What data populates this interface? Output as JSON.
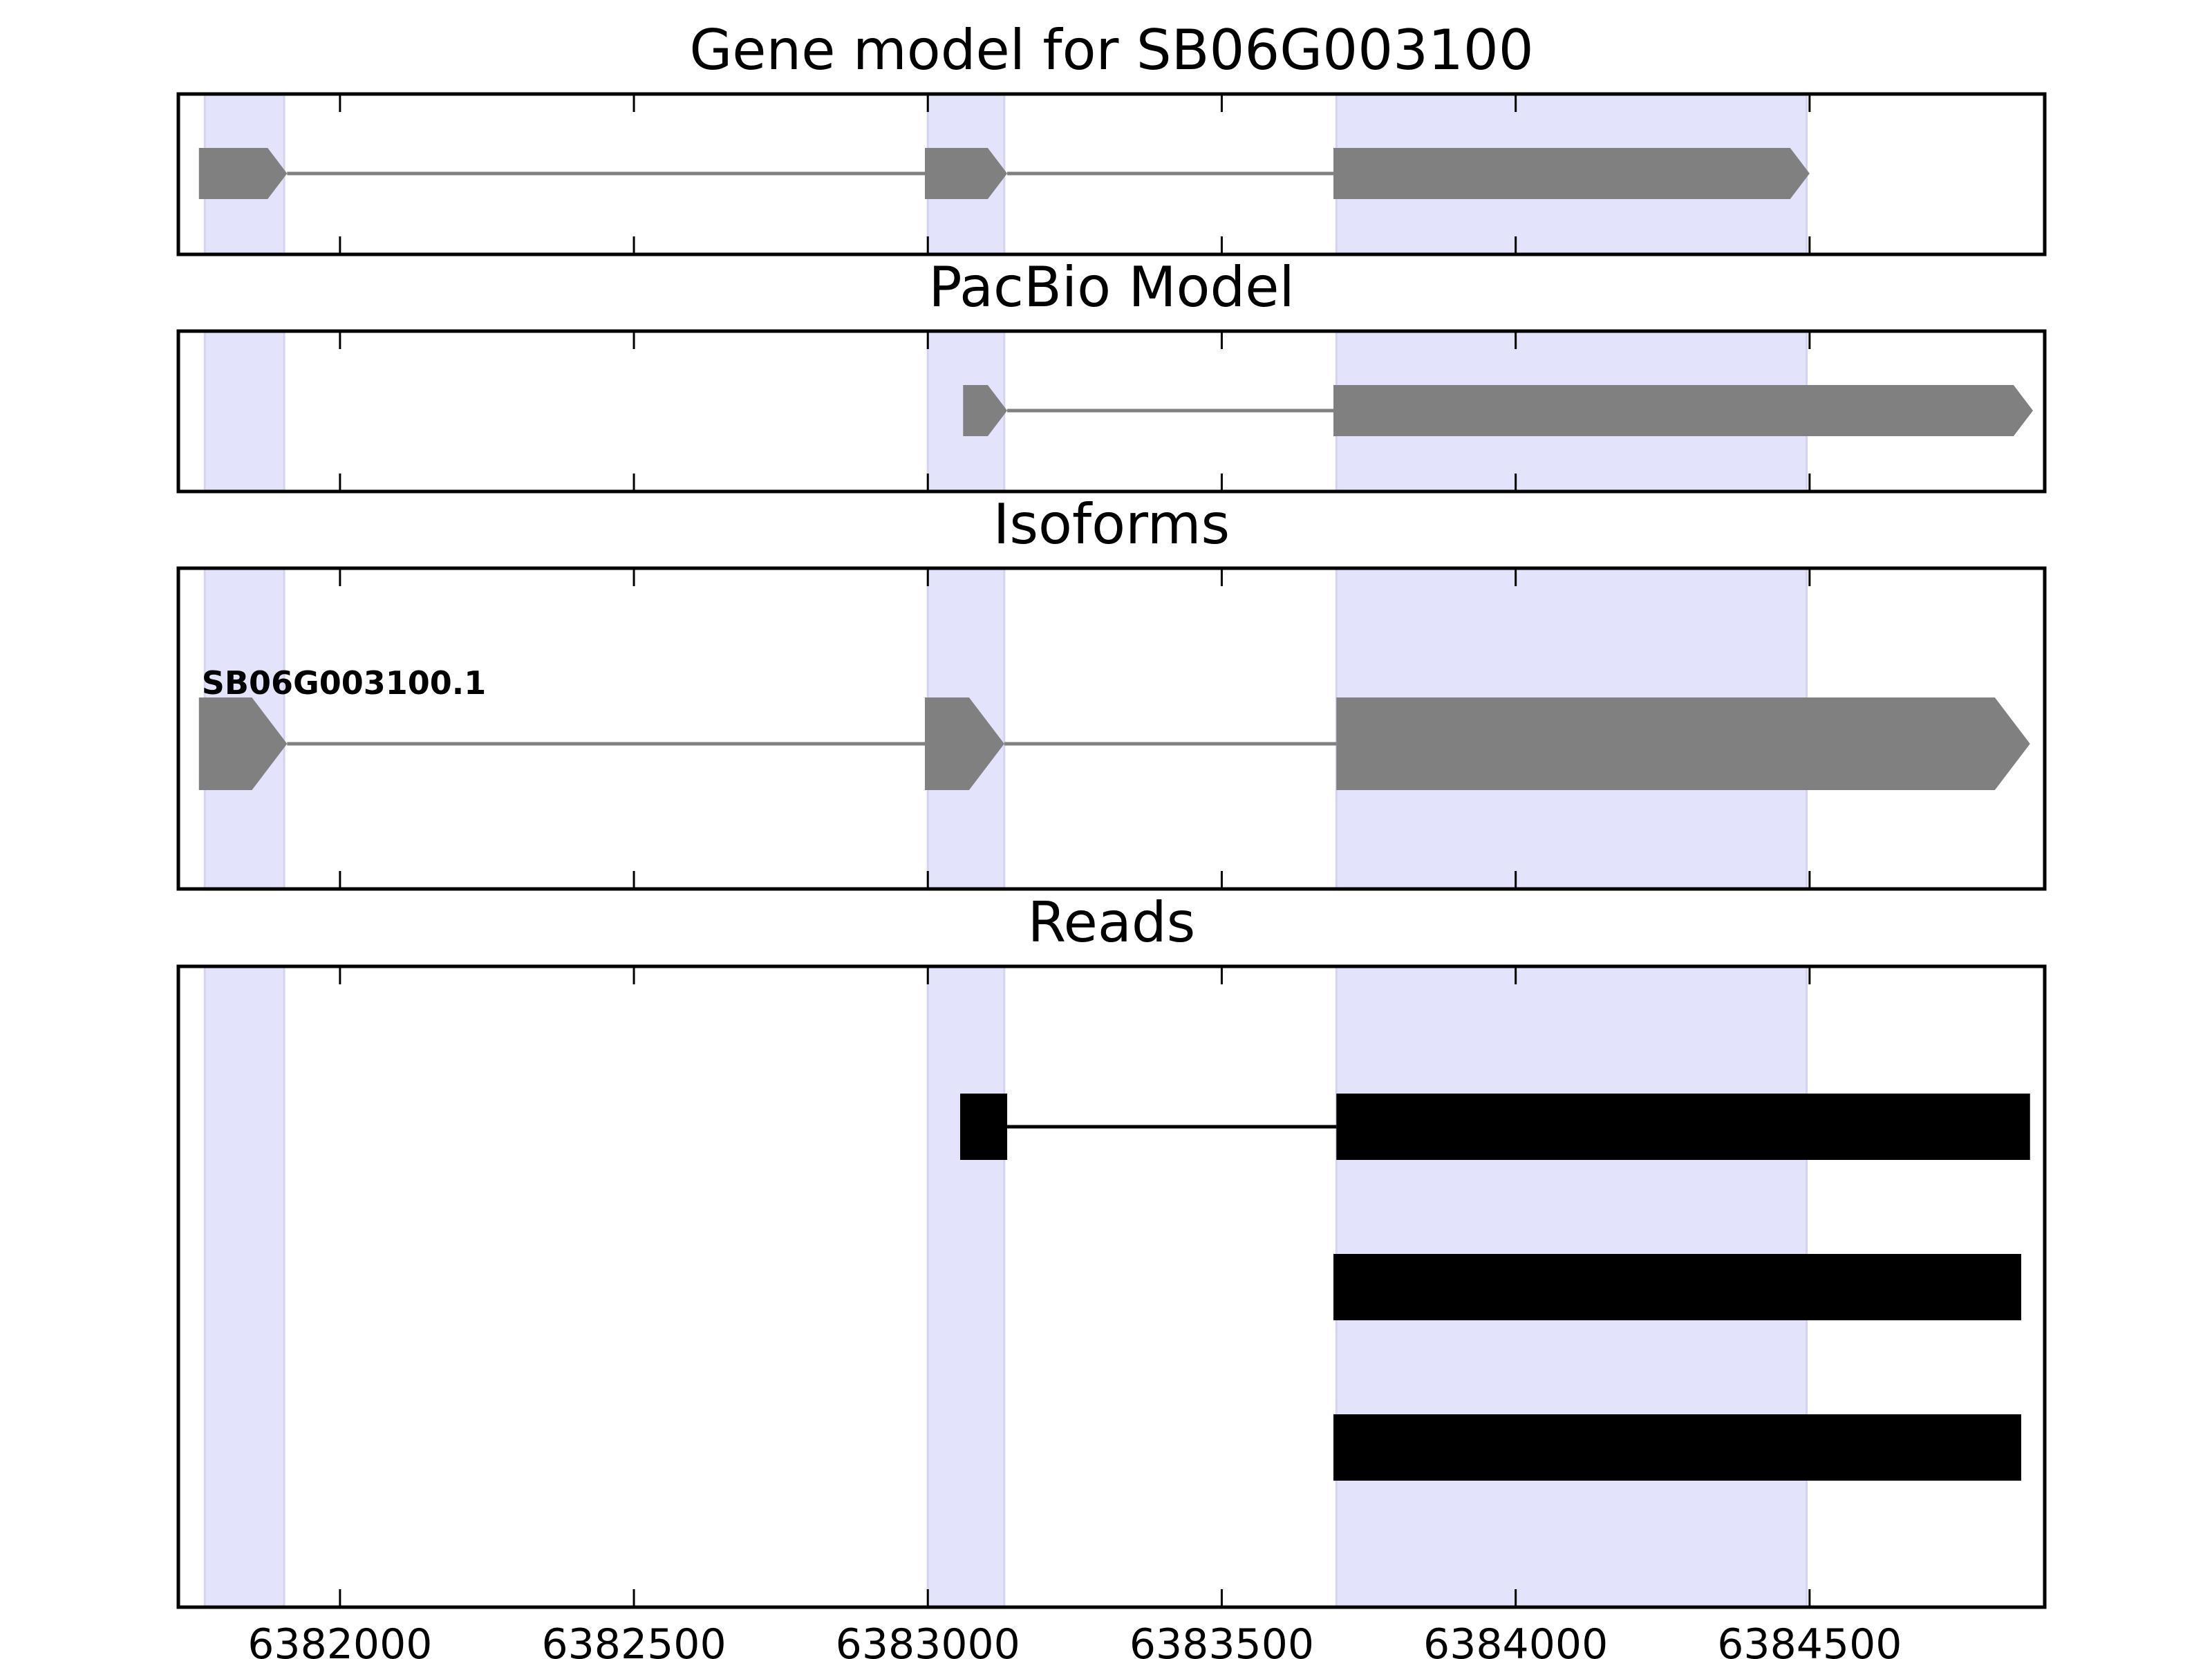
{
  "chart_data": {
    "type": "gene-model",
    "xlim": [
      6381725,
      6384900
    ],
    "xticks": [
      6382000,
      6382500,
      6383000,
      6383500,
      6384000,
      6384500
    ],
    "xtick_labels": [
      "6382000",
      "6382500",
      "6383000",
      "6383500",
      "6384000",
      "6384500"
    ],
    "highlight_regions": [
      [
        6381770,
        6381905
      ],
      [
        6383000,
        6383130
      ],
      [
        6383695,
        6384495
      ]
    ],
    "colors": {
      "highlight": "#e3e3fc",
      "model": "#808080",
      "reads": "#000000",
      "frame": "#000000"
    },
    "panels": [
      {
        "title": "Gene model for SB06G003100",
        "features": [
          {
            "exons": [
              [
                6381760,
                6381910
              ],
              [
                6382995,
                6383135
              ],
              [
                6383690,
                6384500
              ]
            ],
            "strand": "+",
            "color": "#808080"
          }
        ]
      },
      {
        "title": "PacBio Model",
        "features": [
          {
            "exons": [
              [
                6383060,
                6383135
              ],
              [
                6383690,
                6384880
              ]
            ],
            "strand": "+",
            "color": "#808080"
          }
        ]
      },
      {
        "title": "Isoforms",
        "features": [
          {
            "label": "SB06G003100.1",
            "exons": [
              [
                6381760,
                6381910
              ],
              [
                6382995,
                6383130
              ],
              [
                6383695,
                6384875
              ]
            ],
            "strand": "+",
            "color": "#808080"
          }
        ]
      },
      {
        "title": "Reads",
        "features": [
          {
            "exons": [
              [
                6383055,
                6383135
              ],
              [
                6383695,
                6384875
              ]
            ],
            "strand": "none",
            "color": "#000000"
          },
          {
            "exons": [
              [
                6383690,
                6384860
              ]
            ],
            "strand": "none",
            "color": "#000000"
          },
          {
            "exons": [
              [
                6383690,
                6384860
              ]
            ],
            "strand": "none",
            "color": "#000000"
          }
        ]
      }
    ]
  }
}
